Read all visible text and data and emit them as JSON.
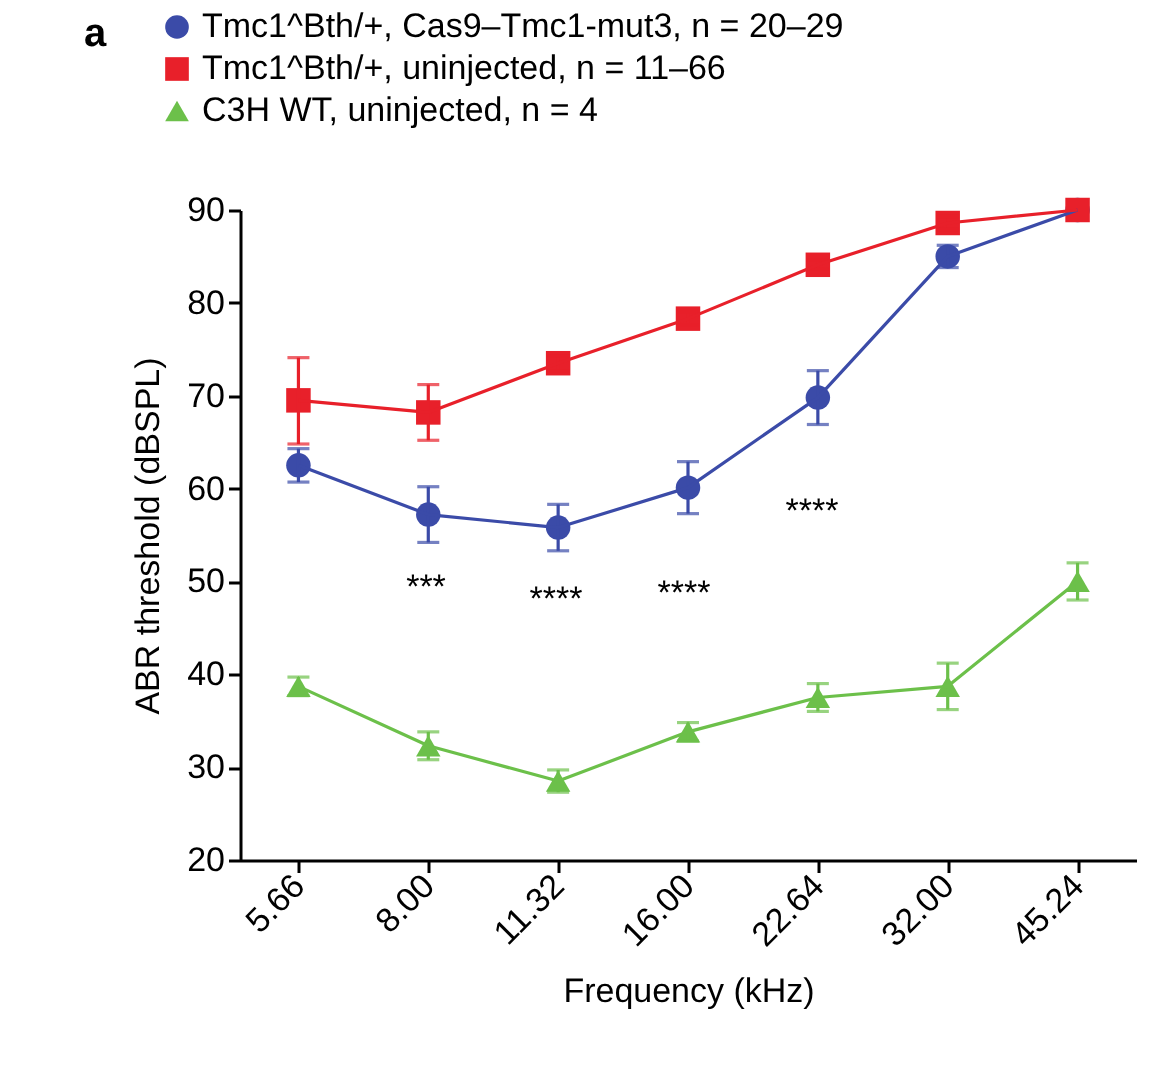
{
  "chart_data": {
    "type": "line",
    "xlabel": "Frequency (kHz)",
    "ylabel": "ABR threshold (dBSPL)",
    "categories": [
      "5.66",
      "8.00",
      "11.32",
      "16.00",
      "22.64",
      "32.00",
      "45.24"
    ],
    "ylim": [
      20,
      90
    ],
    "yticks": [
      20,
      30,
      40,
      50,
      60,
      70,
      80,
      90
    ],
    "grid": false,
    "legend": "top left",
    "line_style": "solid",
    "series": [
      {
        "name": "Tmc1^Bth/+, Cas9–Tmc1-mut3, n = 20–29",
        "color": "#3b4ba8",
        "marker": "circle",
        "values": [
          62.5,
          57.2,
          55.8,
          60.1,
          69.8,
          85.0,
          90.0
        ],
        "errors": [
          1.8,
          3.0,
          2.5,
          2.8,
          2.9,
          1.2,
          null
        ]
      },
      {
        "name": "Tmc1^Bth/+, uninjected, n = 11–66",
        "color": "#e8202a",
        "marker": "square",
        "values": [
          69.5,
          68.2,
          73.5,
          78.3,
          84.1,
          88.6,
          90.0
        ],
        "errors": [
          [
            64.8,
            74.1
          ],
          3.0,
          0.8,
          0.7,
          0.5,
          0.7,
          null
        ]
      },
      {
        "name": "C3H WT, uninjected, n = 4",
        "color": "#6cc04a",
        "marker": "triangle",
        "values": [
          38.7,
          32.3,
          28.5,
          33.8,
          37.5,
          38.7,
          50.0
        ],
        "errors": [
          1.0,
          1.5,
          1.2,
          1.0,
          1.5,
          2.5,
          2.0
        ]
      }
    ],
    "annotations": [
      "a",
      "***",
      "****",
      "****",
      "****"
    ]
  }
}
